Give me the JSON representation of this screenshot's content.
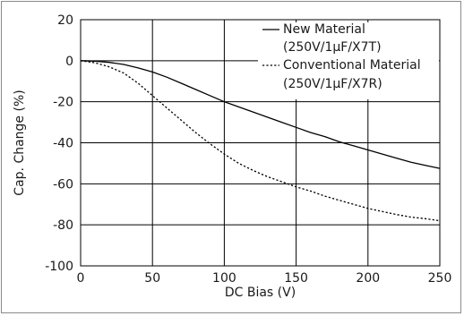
{
  "chart_data": {
    "type": "line",
    "title": "",
    "xlabel": "DC Bias (V)",
    "ylabel": "Cap. Change (%)",
    "xlim": [
      0,
      250
    ],
    "ylim": [
      -100,
      20
    ],
    "xticks": [
      0,
      50,
      100,
      150,
      200,
      250
    ],
    "yticks": [
      20,
      0,
      -20,
      -40,
      -60,
      -80,
      -100
    ],
    "grid": true,
    "legend_position": "top-right",
    "series": [
      {
        "name": "New Material (250V/1µF/X7T)",
        "legend_lines": [
          "New Material",
          "(250V/1µF/X7T)"
        ],
        "style": "solid",
        "color": "#000000",
        "x": [
          0,
          10,
          20,
          30,
          40,
          50,
          60,
          70,
          80,
          90,
          100,
          110,
          120,
          130,
          140,
          150,
          160,
          170,
          180,
          190,
          200,
          210,
          220,
          230,
          240,
          250
        ],
        "y": [
          0,
          -0.2,
          -0.8,
          -1.8,
          -3.5,
          -5.5,
          -8,
          -11,
          -14,
          -17,
          -20,
          -22.5,
          -25,
          -27.5,
          -30,
          -32.5,
          -35,
          -37,
          -39.5,
          -41.5,
          -43.5,
          -45.5,
          -47.5,
          -49.5,
          -51,
          -52.5
        ]
      },
      {
        "name": "Conventional Material (250V/1µF/X7R)",
        "legend_lines": [
          "Conventional Material",
          "(250V/1µF/X7R)"
        ],
        "style": "dotted",
        "color": "#000000",
        "x": [
          0,
          10,
          20,
          30,
          40,
          50,
          60,
          70,
          80,
          90,
          100,
          110,
          120,
          130,
          140,
          150,
          160,
          170,
          180,
          190,
          200,
          210,
          220,
          230,
          240,
          250
        ],
        "y": [
          0,
          -1,
          -3,
          -6,
          -11,
          -17,
          -23,
          -29,
          -35,
          -40.5,
          -45.5,
          -50,
          -53.5,
          -56.5,
          -59,
          -61.5,
          -63.5,
          -66,
          -68,
          -70,
          -72,
          -73.5,
          -75,
          -76.2,
          -77,
          -78
        ]
      }
    ]
  }
}
